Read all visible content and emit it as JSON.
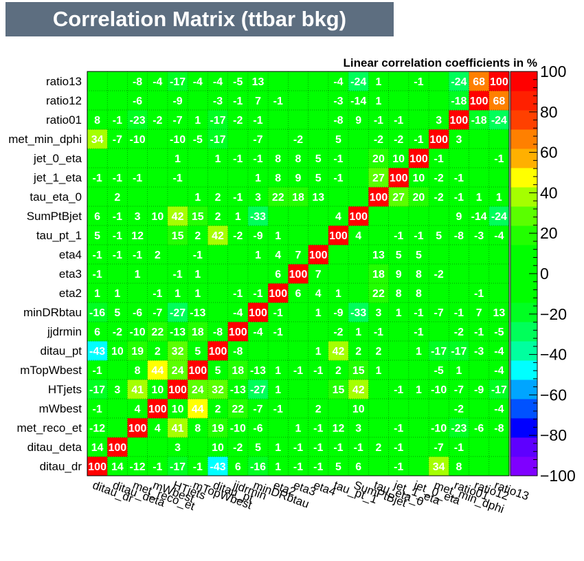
{
  "title": "Correlation Matrix (ttbar bkg)",
  "chart_data": {
    "type": "heatmap",
    "title": "Correlation Matrix (ttbar bkg)",
    "subtitle": "Linear correlation coefficients in %",
    "variables": [
      "ditau_dr",
      "ditau_deta",
      "met_reco_et",
      "mWbest",
      "HTjets",
      "mTopWbest",
      "ditau_pt",
      "jjdrmin",
      "minDRbtau",
      "eta2",
      "eta3",
      "eta4",
      "tau_pt_1",
      "SumPtBjet",
      "tau_eta_0",
      "jet_1_eta",
      "jet_0_eta",
      "met_min_dphi",
      "ratio01",
      "ratio12",
      "ratio13"
    ],
    "x_tick_labels": [
      "ditau_dr",
      "ditau_deta",
      "met_reco_et",
      "mWbest",
      "HTjets",
      "mTopWbest",
      "ditau_pt",
      "jjdrmin",
      "minDRbtau",
      "eta2",
      "eta3",
      "eta4",
      "tau_pt_1",
      "SumPtBjet",
      "tau_eta_0",
      "jet_1_eta",
      "jet_0_eta",
      "met_min_dphi",
      "ratio01",
      "ratio12",
      "ratio13"
    ],
    "y_tick_labels": [
      "ditau_dr",
      "ditau_deta",
      "met_reco_et",
      "mWbest",
      "HTjets",
      "mTopWbest",
      "ditau_pt",
      "jjdrmin",
      "minDRbtau",
      "eta2",
      "eta3",
      "eta4",
      "tau_pt_1",
      "SumPtBjet",
      "tau_eta_0",
      "jet_1_eta",
      "jet_0_eta",
      "met_min_dphi",
      "ratio01",
      "ratio12",
      "ratio13"
    ],
    "values": [
      [
        100,
        14,
        -12,
        -1,
        -17,
        -1,
        -43,
        6,
        -16,
        1,
        -1,
        -1,
        5,
        6,
        0,
        -1,
        0,
        34,
        8,
        0,
        0
      ],
      [
        14,
        100,
        0,
        0,
        3,
        0,
        10,
        -2,
        5,
        1,
        -1,
        -1,
        -1,
        -1,
        2,
        -1,
        0,
        -7,
        -1,
        0,
        0
      ],
      [
        -12,
        0,
        100,
        4,
        41,
        8,
        19,
        -10,
        -6,
        0,
        1,
        -1,
        12,
        3,
        0,
        -1,
        0,
        -10,
        -23,
        -6,
        -8
      ],
      [
        -1,
        0,
        4,
        100,
        10,
        44,
        2,
        22,
        -7,
        -1,
        0,
        2,
        0,
        10,
        0,
        0,
        0,
        0,
        -2,
        0,
        -4
      ],
      [
        -17,
        3,
        41,
        10,
        100,
        24,
        32,
        -13,
        -27,
        1,
        0,
        0,
        15,
        42,
        0,
        -1,
        1,
        -10,
        -7,
        -9,
        -17
      ],
      [
        -1,
        0,
        8,
        44,
        24,
        100,
        5,
        18,
        -13,
        1,
        -1,
        -1,
        2,
        15,
        1,
        0,
        0,
        -5,
        1,
        0,
        -4
      ],
      [
        -43,
        10,
        19,
        2,
        32,
        5,
        100,
        -8,
        0,
        0,
        0,
        1,
        42,
        2,
        2,
        0,
        1,
        -17,
        -17,
        -3,
        -4
      ],
      [
        6,
        -2,
        -10,
        22,
        -13,
        18,
        -8,
        100,
        -4,
        -1,
        0,
        0,
        -2,
        1,
        -1,
        0,
        -1,
        0,
        -2,
        -1,
        -5
      ],
      [
        -16,
        5,
        -6,
        -7,
        -27,
        -13,
        0,
        -4,
        100,
        -1,
        0,
        1,
        -9,
        -33,
        3,
        1,
        -1,
        -7,
        -1,
        7,
        13
      ],
      [
        1,
        1,
        0,
        -1,
        1,
        1,
        0,
        -1,
        -1,
        100,
        6,
        4,
        1,
        0,
        22,
        8,
        8,
        0,
        0,
        -1,
        0
      ],
      [
        -1,
        0,
        1,
        0,
        -1,
        1,
        0,
        0,
        0,
        6,
        100,
        7,
        0,
        0,
        18,
        9,
        8,
        -2,
        0,
        0,
        0
      ],
      [
        -1,
        -1,
        -1,
        2,
        0,
        -1,
        0,
        0,
        1,
        4,
        7,
        100,
        0,
        0,
        13,
        5,
        5,
        0,
        0,
        0,
        0
      ],
      [
        5,
        -1,
        12,
        0,
        15,
        2,
        42,
        -2,
        -9,
        1,
        0,
        0,
        100,
        4,
        0,
        -1,
        -1,
        5,
        -8,
        -3,
        -4
      ],
      [
        6,
        -1,
        3,
        10,
        42,
        15,
        2,
        1,
        -33,
        0,
        0,
        0,
        4,
        100,
        0,
        0,
        0,
        0,
        9,
        -14,
        -24
      ],
      [
        0,
        2,
        0,
        0,
        0,
        1,
        2,
        -1,
        3,
        22,
        18,
        13,
        0,
        0,
        100,
        27,
        20,
        -2,
        -1,
        1,
        1
      ],
      [
        -1,
        -1,
        -1,
        0,
        -1,
        0,
        0,
        0,
        1,
        8,
        9,
        5,
        -1,
        0,
        27,
        100,
        10,
        -2,
        -1,
        0,
        0
      ],
      [
        0,
        0,
        0,
        0,
        1,
        0,
        1,
        -1,
        -1,
        8,
        8,
        5,
        -1,
        0,
        20,
        10,
        100,
        -1,
        0,
        0,
        -1
      ],
      [
        34,
        -7,
        -10,
        0,
        -10,
        -5,
        -17,
        0,
        -7,
        0,
        -2,
        0,
        5,
        0,
        -2,
        -2,
        -1,
        100,
        3,
        0,
        0
      ],
      [
        8,
        -1,
        -23,
        -2,
        -7,
        1,
        -17,
        -2,
        -1,
        0,
        0,
        0,
        -8,
        9,
        -1,
        -1,
        0,
        3,
        100,
        -18,
        -24
      ],
      [
        0,
        0,
        -6,
        0,
        -9,
        0,
        -3,
        -1,
        7,
        -1,
        0,
        0,
        -3,
        -14,
        1,
        0,
        0,
        0,
        -18,
        100,
        68
      ],
      [
        0,
        0,
        -8,
        -4,
        -17,
        -4,
        -4,
        -5,
        13,
        0,
        0,
        0,
        -4,
        -24,
        1,
        0,
        -1,
        0,
        -24,
        68,
        100
      ]
    ],
    "z_range": [
      -100,
      100
    ],
    "z_tick_labels": [
      "100",
      "80",
      "60",
      "40",
      "20",
      "0",
      "−20",
      "−40",
      "−60",
      "−80",
      "−100"
    ],
    "colorbar_colors": [
      "#7f00ff",
      "#5e00ff",
      "#0000ff",
      "#0052ff",
      "#00a5ff",
      "#00ffff",
      "#00ff9f",
      "#00ff5a",
      "#00ff22",
      "#00ff00",
      "#00ff00",
      "#00ff00",
      "#22ff00",
      "#5aff00",
      "#a5ff00",
      "#ffff00",
      "#ffb000",
      "#ff8000",
      "#ff4000",
      "#ff2000",
      "#ff0000"
    ],
    "legend_placement": "right",
    "grid": true
  }
}
